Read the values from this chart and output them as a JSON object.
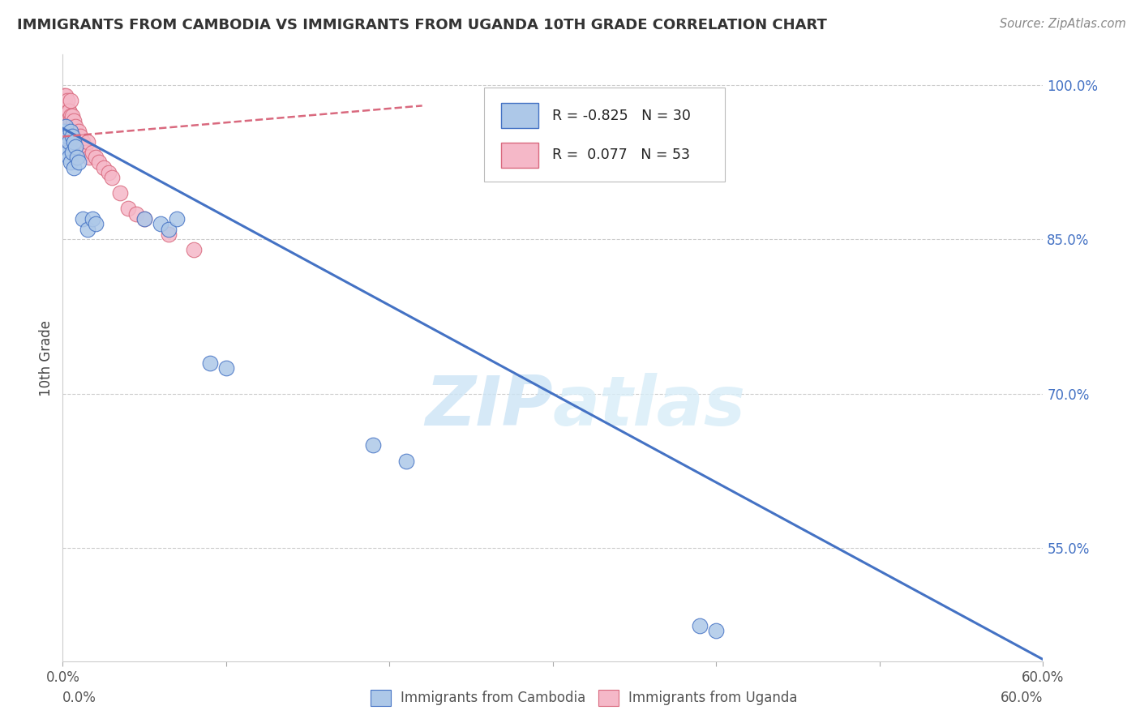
{
  "title": "IMMIGRANTS FROM CAMBODIA VS IMMIGRANTS FROM UGANDA 10TH GRADE CORRELATION CHART",
  "source": "Source: ZipAtlas.com",
  "series1_label": "Immigrants from Cambodia",
  "series2_label": "Immigrants from Uganda",
  "ylabel": "10th Grade",
  "xlim": [
    0.0,
    0.6
  ],
  "ylim": [
    0.44,
    1.03
  ],
  "ytick_vals": [
    0.55,
    0.7,
    0.85,
    1.0
  ],
  "ytick_labels": [
    "55.0%",
    "70.0%",
    "85.0%",
    "100.0%"
  ],
  "xtick_vals": [
    0.0,
    0.1,
    0.2,
    0.3,
    0.4,
    0.5,
    0.6
  ],
  "xtick_labels": [
    "0.0%",
    "",
    "",
    "",
    "",
    "",
    "60.0%"
  ],
  "R_blue": -0.825,
  "N_blue": 30,
  "R_pink": 0.077,
  "N_pink": 53,
  "color_blue_fill": "#adc8e8",
  "color_blue_edge": "#4472C4",
  "color_pink_fill": "#f5b8c8",
  "color_pink_edge": "#d9697e",
  "watermark_zip": "ZIP",
  "watermark_atlas": "atlas",
  "blue_x": [
    0.001,
    0.002,
    0.002,
    0.003,
    0.003,
    0.004,
    0.004,
    0.005,
    0.005,
    0.006,
    0.006,
    0.007,
    0.007,
    0.008,
    0.009,
    0.01,
    0.012,
    0.015,
    0.018,
    0.02,
    0.05,
    0.06,
    0.065,
    0.07,
    0.09,
    0.1,
    0.19,
    0.21,
    0.39,
    0.4
  ],
  "blue_y": [
    0.955,
    0.94,
    0.96,
    0.935,
    0.95,
    0.945,
    0.93,
    0.955,
    0.925,
    0.95,
    0.935,
    0.945,
    0.92,
    0.94,
    0.93,
    0.925,
    0.87,
    0.86,
    0.87,
    0.865,
    0.87,
    0.865,
    0.86,
    0.87,
    0.73,
    0.725,
    0.65,
    0.635,
    0.475,
    0.47
  ],
  "pink_x": [
    0.001,
    0.001,
    0.001,
    0.002,
    0.002,
    0.002,
    0.002,
    0.003,
    0.003,
    0.003,
    0.003,
    0.003,
    0.004,
    0.004,
    0.004,
    0.004,
    0.005,
    0.005,
    0.005,
    0.005,
    0.005,
    0.006,
    0.006,
    0.006,
    0.006,
    0.007,
    0.007,
    0.007,
    0.008,
    0.008,
    0.008,
    0.009,
    0.009,
    0.01,
    0.01,
    0.011,
    0.012,
    0.013,
    0.014,
    0.015,
    0.016,
    0.018,
    0.02,
    0.022,
    0.025,
    0.028,
    0.03,
    0.035,
    0.04,
    0.045,
    0.05,
    0.065,
    0.08
  ],
  "pink_y": [
    0.99,
    0.975,
    0.985,
    0.98,
    0.96,
    0.99,
    0.97,
    0.975,
    0.955,
    0.985,
    0.965,
    0.95,
    0.975,
    0.96,
    0.945,
    0.975,
    0.97,
    0.955,
    0.985,
    0.965,
    0.945,
    0.97,
    0.95,
    0.96,
    0.94,
    0.965,
    0.95,
    0.94,
    0.96,
    0.945,
    0.93,
    0.95,
    0.94,
    0.955,
    0.935,
    0.95,
    0.945,
    0.94,
    0.935,
    0.945,
    0.93,
    0.935,
    0.93,
    0.925,
    0.92,
    0.915,
    0.91,
    0.895,
    0.88,
    0.875,
    0.87,
    0.855,
    0.84
  ],
  "blue_line_x": [
    0.0,
    0.6
  ],
  "blue_line_y": [
    0.958,
    0.442
  ],
  "pink_line_x": [
    0.0,
    0.22
  ],
  "pink_line_y": [
    0.95,
    0.98
  ]
}
